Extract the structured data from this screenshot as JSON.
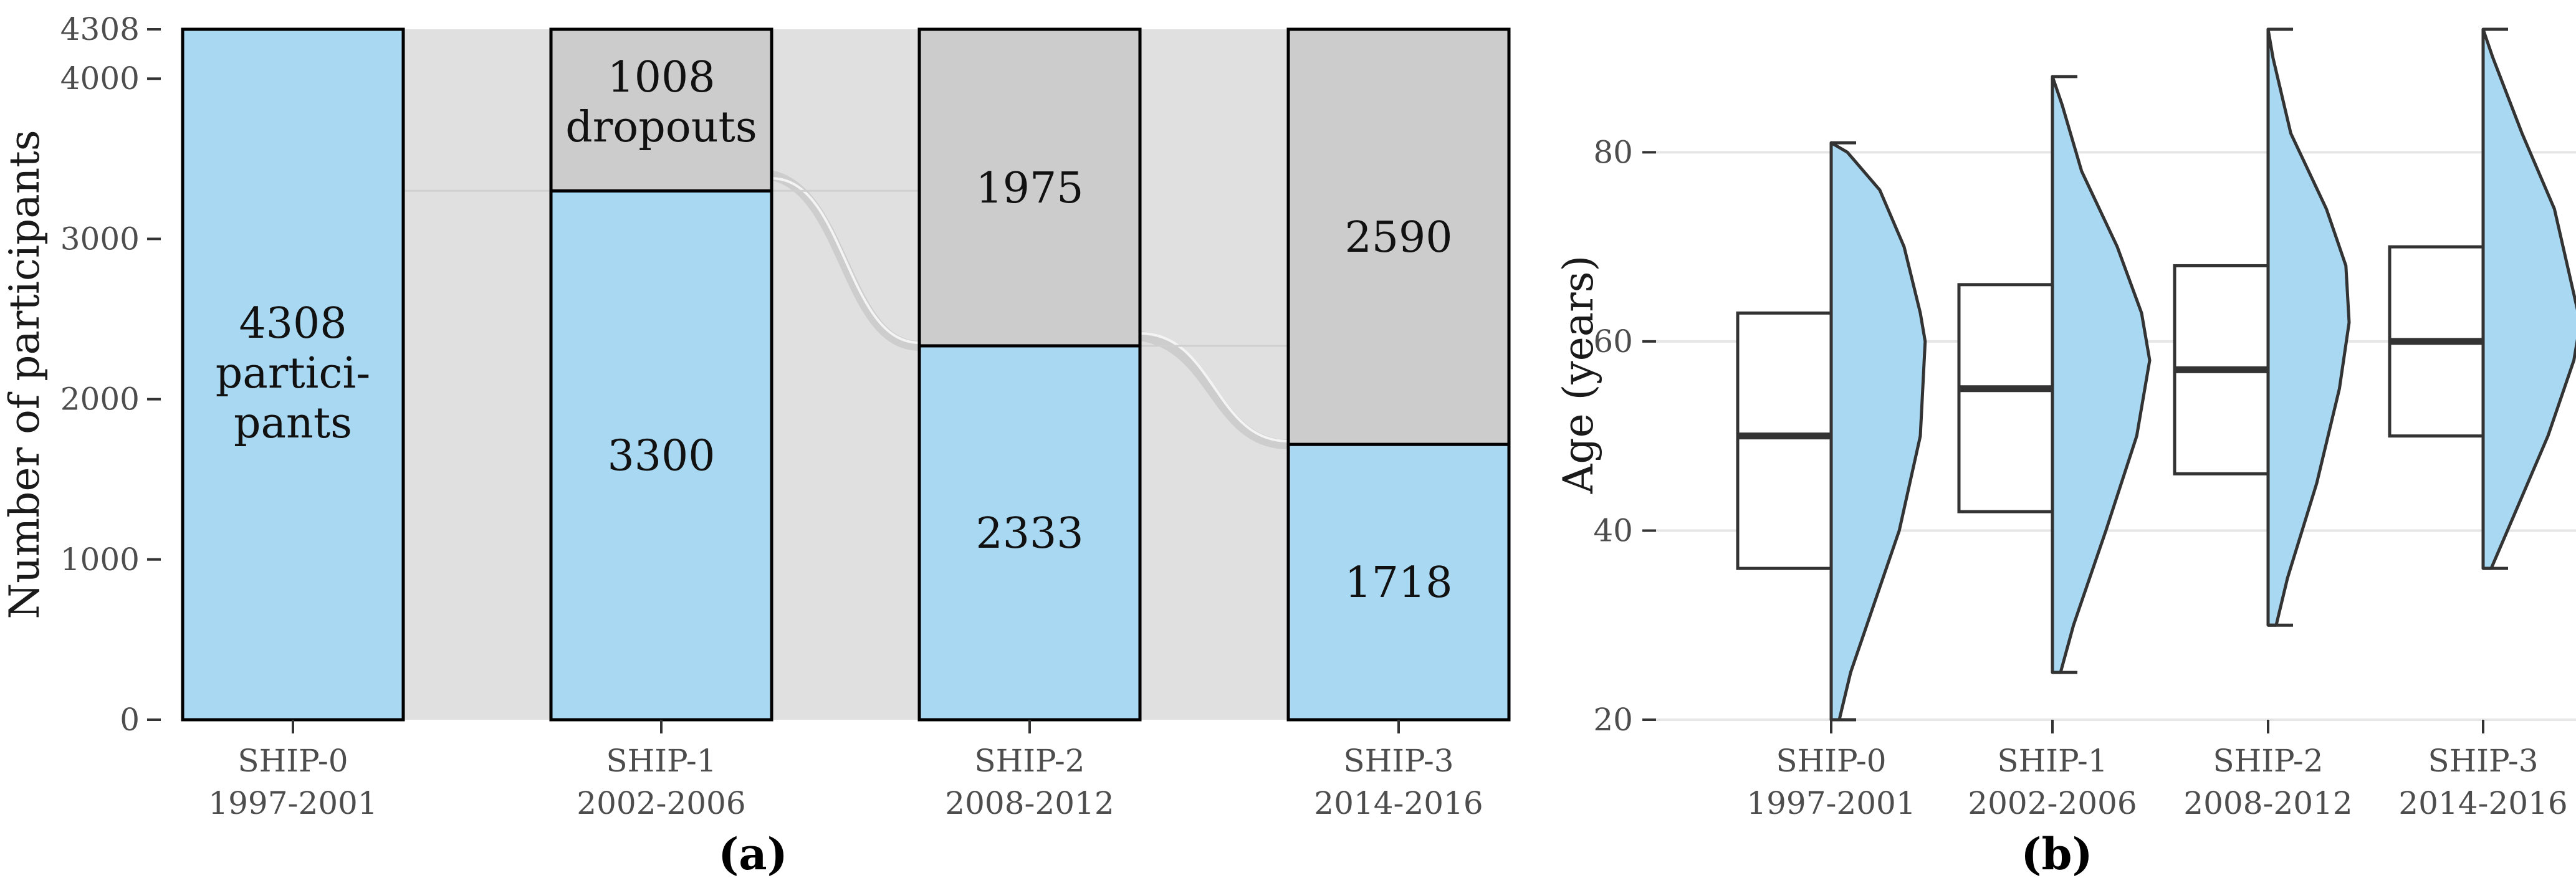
{
  "chart_data": [
    {
      "type": "alluvial",
      "panel_label": "(a)",
      "ylabel": "Number of participants",
      "xlabel": "",
      "ylim": [
        0,
        4308
      ],
      "yticks": [
        0,
        1000,
        2000,
        3000,
        4000,
        4308
      ],
      "categories": [
        {
          "name": "SHIP-0",
          "period": "1997-2001"
        },
        {
          "name": "SHIP-1",
          "period": "2002-2006"
        },
        {
          "name": "SHIP-2",
          "period": "2008-2012"
        },
        {
          "name": "SHIP-3",
          "period": "2014-2016"
        }
      ],
      "series": [
        {
          "name": "participants",
          "color": "#a9d9f2",
          "values": [
            4308,
            3300,
            2333,
            1718
          ],
          "labels": [
            "4308 partici- pants",
            "3300",
            "2333",
            "1718"
          ]
        },
        {
          "name": "dropouts",
          "color": "#cccccc",
          "values": [
            0,
            1008,
            1975,
            2590
          ],
          "labels": [
            "",
            "1008 dropouts",
            "1975",
            "2590"
          ]
        }
      ],
      "label_lines": {
        "first_bar": [
          "4308",
          "partici-",
          "pants"
        ],
        "second_bar_top": [
          "1008",
          "dropouts"
        ]
      },
      "flow_color": "#e0e0e0",
      "grid": false
    },
    {
      "type": "box+violin",
      "panel_label": "(b)",
      "ylabel": "Age (years)",
      "xlabel": "",
      "ylim": [
        20,
        93
      ],
      "yticks": [
        20,
        40,
        60,
        80
      ],
      "categories": [
        {
          "name": "SHIP-0",
          "period": "1997-2001"
        },
        {
          "name": "SHIP-1",
          "period": "2002-2006"
        },
        {
          "name": "SHIP-2",
          "period": "2008-2012"
        },
        {
          "name": "SHIP-3",
          "period": "2014-2016"
        }
      ],
      "boxes": [
        {
          "q1": 36,
          "median": 50,
          "q3": 63,
          "min": 20,
          "max": 81
        },
        {
          "q1": 42,
          "median": 55,
          "q3": 66,
          "min": 25,
          "max": 88
        },
        {
          "q1": 46,
          "median": 57,
          "q3": 68,
          "min": 30,
          "max": 93
        },
        {
          "q1": 50,
          "median": 60,
          "q3": 70,
          "min": 36,
          "max": 93
        }
      ],
      "violin_color": "#a9d9f2",
      "grid": true
    }
  ]
}
